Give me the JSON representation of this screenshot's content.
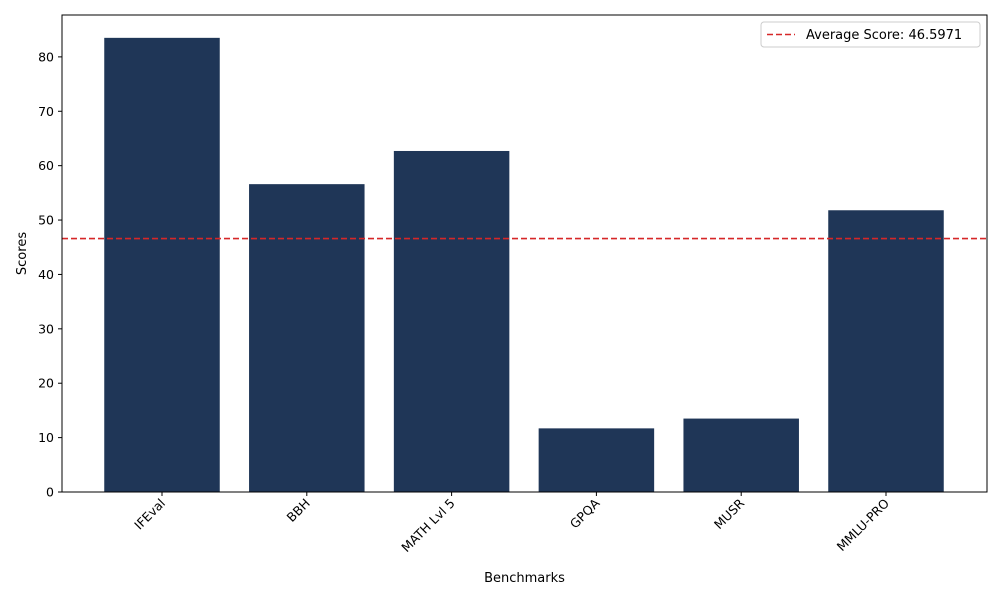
{
  "chart_data": {
    "type": "bar",
    "categories": [
      "IFEval",
      "BBH",
      "MATH Lvl 5",
      "GPQA",
      "MUSR",
      "MMLU-PRO"
    ],
    "values": [
      83.5,
      56.6,
      62.7,
      11.7,
      13.5,
      51.8
    ],
    "bar_color": "#1f3657",
    "xlabel": "Benchmarks",
    "ylabel": "Scores",
    "ylim": [
      0,
      87.7
    ],
    "yticks": [
      0,
      10,
      20,
      30,
      40,
      50,
      60,
      70,
      80
    ],
    "reference_line": {
      "value": 46.5971,
      "label": "Average Score: 46.5971",
      "color": "#d62728",
      "style": "dashed"
    },
    "legend_position": "top-right",
    "grid": false
  }
}
